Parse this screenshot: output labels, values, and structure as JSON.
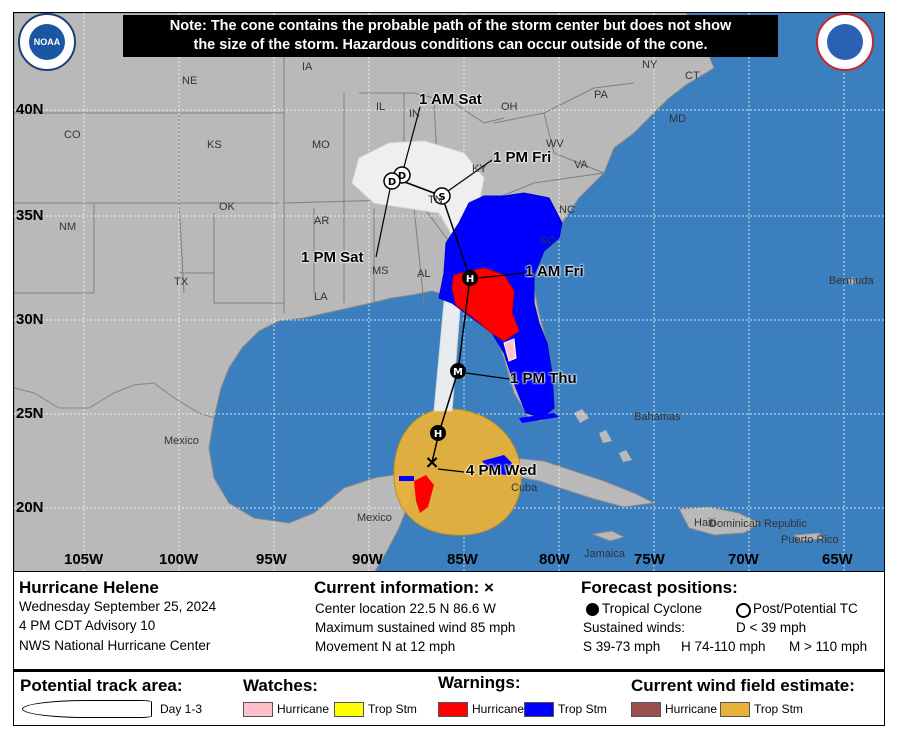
{
  "note": {
    "line1": "Note: The cone contains the probable path of the storm center but does not show",
    "line2": "the size of the storm. Hazardous conditions can occur outside of the cone."
  },
  "logos": {
    "left": "NOAA",
    "right": "National Weather Service"
  },
  "map": {
    "lat_labels": [
      "40N",
      "35N",
      "30N",
      "25N",
      "20N"
    ],
    "lon_labels": [
      "105W",
      "100W",
      "95W",
      "90W",
      "85W",
      "80W",
      "75W",
      "70W",
      "65W"
    ],
    "states": [
      "NE",
      "IA",
      "CO",
      "KS",
      "MO",
      "IL",
      "IN",
      "OH",
      "PA",
      "NY",
      "CT",
      "NM",
      "OK",
      "AR",
      "TN",
      "KY",
      "WV",
      "VA",
      "NC",
      "TX",
      "LA",
      "MS",
      "AL",
      "SC",
      "MD"
    ],
    "places": [
      "Mexico",
      "Mexico",
      "Cuba",
      "Bahamas",
      "Bermuda",
      "Jamaica",
      "Haiti",
      "Dominican Republic",
      "Puerto Rico"
    ],
    "forecast_points": [
      {
        "symbol": "×",
        "label": "4 PM Wed"
      },
      {
        "symbol": "H",
        "label": ""
      },
      {
        "symbol": "M",
        "label": "1 PM Thu"
      },
      {
        "symbol": "H",
        "label": "1 AM Fri"
      },
      {
        "symbol": "S",
        "label": "1 PM Fri"
      },
      {
        "symbol": "D",
        "label": "1 AM Sat"
      },
      {
        "symbol": "D",
        "label": "1 PM Sat"
      }
    ]
  },
  "storm": {
    "name": "Hurricane Helene",
    "date": "Wednesday September 25, 2024",
    "advisory": "4 PM CDT Advisory 10",
    "center": "NWS National Hurricane Center"
  },
  "current": {
    "title": "Current information: ×",
    "location": "Center location 22.5 N 86.6 W",
    "wind": "Maximum sustained wind 85 mph",
    "movement": "Movement N at 12 mph"
  },
  "forecast": {
    "title": "Forecast positions:",
    "tc": "Tropical Cyclone",
    "post": "Post/Potential TC",
    "sustained": "Sustained winds:",
    "d": "D < 39 mph",
    "s": "S 39-73 mph",
    "h": "H 74-110 mph",
    "m": "M > 110 mph"
  },
  "legend": {
    "track_title": "Potential track area:",
    "day": "Day 1-3",
    "watches_title": "Watches:",
    "warnings_title": "Warnings:",
    "wind_title": "Current wind field estimate:",
    "hurricane": "Hurricane",
    "trop_stm": "Trop Stm"
  },
  "colors": {
    "ocean": "#3b7fbf",
    "land": "#b9b9b9",
    "cone": "#f2f2f2",
    "hurricane_watch": "#ffc0cb",
    "trop_stm_watch": "#ffff00",
    "hurricane_warning": "#ff0000",
    "trop_stm_warning": "#0000ff",
    "hurricane_wind": "#9c4f4f",
    "trop_stm_wind": "#e8b13a"
  }
}
